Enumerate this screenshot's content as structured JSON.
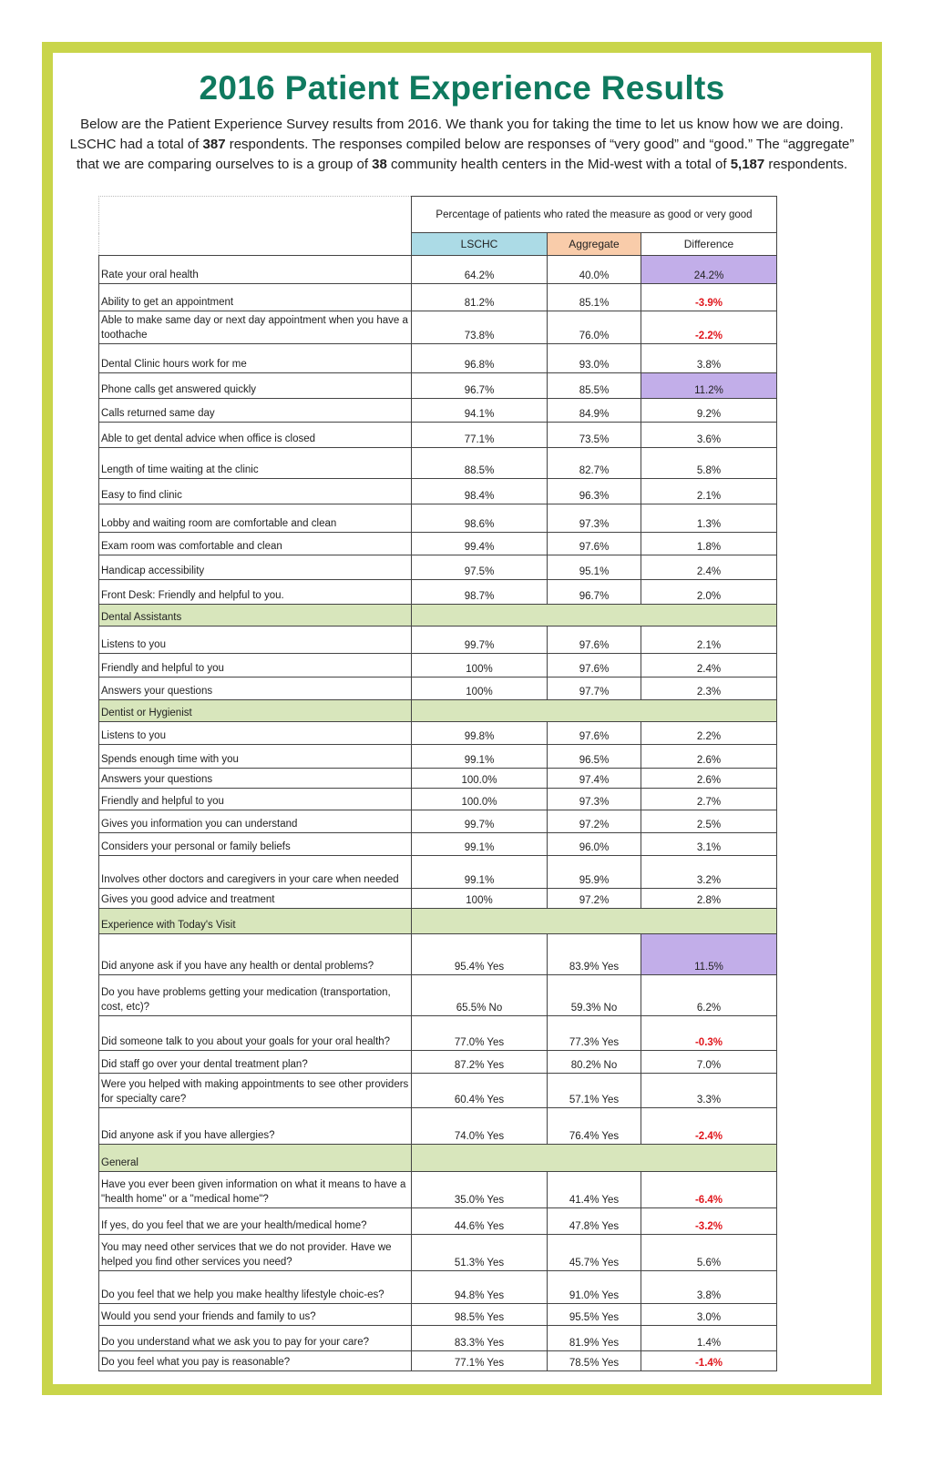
{
  "title": "2016 Patient Experience Results",
  "intro": {
    "p1": "Below are the Patient Experience Survey results from 2016. We thank you for taking the time to let us know how we are doing. LSCHC had a total of ",
    "n1": "387",
    "p2": " respondents. The responses compiled below are responses of “very good” and “good.”  The “aggregate” that we are comparing ourselves to is a group of ",
    "n2": "38",
    "p3": " community health centers in the Mid-west with a total of ",
    "n3": "5,187",
    "p4": " respondents."
  },
  "table": {
    "span_header": "Percentage of patients who rated the measure as good or very good",
    "columns": [
      "LSCHC",
      "Aggregate",
      "Difference"
    ],
    "colors": {
      "lschc": "#acdbe6",
      "aggregate": "#f9ccaa",
      "section": "#d8e6bc",
      "highlight": "#c2aee9",
      "negative": "#e0161c"
    },
    "rows": [
      {
        "q": "Rate your oral health",
        "a": "64.2%",
        "b": "40.0%",
        "d": "24.2%",
        "hl": true
      },
      {
        "q": "Ability to get an appointment",
        "a": "81.2%",
        "b": "85.1%",
        "d": "-3.9%",
        "neg": true
      },
      {
        "q": "Able to make same day or next day appointment when you have a toothache",
        "a": "73.8%",
        "b": "76.0%",
        "d": "-2.2%",
        "neg": true
      },
      {
        "q": "Dental Clinic hours work for me",
        "a": "96.8%",
        "b": "93.0%",
        "d": "3.8%"
      },
      {
        "q": "Phone calls get answered quickly",
        "a": "96.7%",
        "b": "85.5%",
        "d": "11.2%",
        "hl": true
      },
      {
        "q": "Calls returned same day",
        "a": "94.1%",
        "b": "84.9%",
        "d": "9.2%"
      },
      {
        "q": "Able to get dental advice when office is closed",
        "a": "77.1%",
        "b": "73.5%",
        "d": "3.6%"
      },
      {
        "q": "Length of time waiting at the clinic",
        "a": "88.5%",
        "b": "82.7%",
        "d": "5.8%"
      },
      {
        "q": "Easy to find clinic",
        "a": "98.4%",
        "b": "96.3%",
        "d": "2.1%"
      },
      {
        "q": "Lobby and waiting room are comfortable and clean",
        "a": "98.6%",
        "b": "97.3%",
        "d": "1.3%"
      },
      {
        "q": "Exam room was comfortable and clean",
        "a": "99.4%",
        "b": "97.6%",
        "d": "1.8%"
      },
      {
        "q": "Handicap accessibility",
        "a": "97.5%",
        "b": "95.1%",
        "d": "2.4%"
      },
      {
        "q": "Front Desk: Friendly and helpful to you.",
        "a": "98.7%",
        "b": "96.7%",
        "d": "2.0%"
      },
      {
        "section": "Dental Assistants"
      },
      {
        "q": "Listens to you",
        "a": "99.7%",
        "b": "97.6%",
        "d": "2.1%"
      },
      {
        "q": "Friendly and helpful to you",
        "a": "100%",
        "b": "97.6%",
        "d": "2.4%"
      },
      {
        "q": "Answers your questions",
        "a": "100%",
        "b": "97.7%",
        "d": "2.3%"
      },
      {
        "section": "Dentist or Hygienist"
      },
      {
        "q": "Listens to you",
        "a": "99.8%",
        "b": "97.6%",
        "d": "2.2%"
      },
      {
        "q": "Spends enough time with you",
        "a": "99.1%",
        "b": "96.5%",
        "d": "2.6%"
      },
      {
        "q": "Answers your questions",
        "a": "100.0%",
        "b": "97.4%",
        "d": "2.6%"
      },
      {
        "q": "Friendly and helpful to you",
        "a": "100.0%",
        "b": "97.3%",
        "d": "2.7%"
      },
      {
        "q": "Gives you information you can understand",
        "a": "99.7%",
        "b": "97.2%",
        "d": "2.5%"
      },
      {
        "q": "Considers your personal or family beliefs",
        "a": "99.1%",
        "b": "96.0%",
        "d": "3.1%"
      },
      {
        "q": "Involves other doctors and caregivers in your care when needed",
        "a": "99.1%",
        "b": "95.9%",
        "d": "3.2%"
      },
      {
        "q": "Gives you good advice and treatment",
        "a": "100%",
        "b": "97.2%",
        "d": "2.8%"
      },
      {
        "section": "Experience with Today's Visit"
      },
      {
        "q": "Did anyone ask if you have any health or dental problems?",
        "a": "95.4% Yes",
        "b": "83.9% Yes",
        "d": "11.5%",
        "hl": true
      },
      {
        "q": "Do you have problems getting your medication (transportation, cost, etc)?",
        "a": "65.5% No",
        "b": "59.3% No",
        "d": "6.2%"
      },
      {
        "q": "Did someone talk to you about your goals for your oral health?",
        "a": "77.0% Yes",
        "b": "77.3% Yes",
        "d": "-0.3%",
        "neg": true
      },
      {
        "q": "Did staff go over your dental treatment plan?",
        "a": "87.2% Yes",
        "b": "80.2% No",
        "d": "7.0%"
      },
      {
        "q": "Were you helped with making appointments to see other providers for specialty care?",
        "a": "60.4% Yes",
        "b": "57.1% Yes",
        "d": "3.3%"
      },
      {
        "q": "Did anyone ask if you have allergies?",
        "a": "74.0% Yes",
        "b": "76.4% Yes",
        "d": "-2.4%",
        "neg": true
      },
      {
        "section": "General"
      },
      {
        "q": "Have you ever been given information on what it means to have a \"health home\" or a \"medical home\"?",
        "a": "35.0% Yes",
        "b": "41.4% Yes",
        "d": "-6.4%",
        "neg": true
      },
      {
        "q": "If yes, do you feel that we are your health/medical home?",
        "a": "44.6% Yes",
        "b": "47.8% Yes",
        "d": "-3.2%",
        "neg": true
      },
      {
        "q": "You may need other services that we do not provider. Have we helped you find other services you need?",
        "a": "51.3% Yes",
        "b": "45.7% Yes",
        "d": "5.6%"
      },
      {
        "q": "Do you feel that we help you make healthy lifestyle choic-es?",
        "a": "94.8% Yes",
        "b": "91.0% Yes",
        "d": "3.8%"
      },
      {
        "q": "Would you send your friends and family to us?",
        "a": "98.5% Yes",
        "b": "95.5% Yes",
        "d": "3.0%"
      },
      {
        "q": "Do you understand what we ask you to pay for your care?",
        "a": "83.3% Yes",
        "b": "81.9% Yes",
        "d": "1.4%"
      },
      {
        "q": "Do you feel what you pay is reasonable?",
        "a": "77.1% Yes",
        "b": "78.5% Yes",
        "d": "-1.4%",
        "neg": true
      }
    ]
  }
}
